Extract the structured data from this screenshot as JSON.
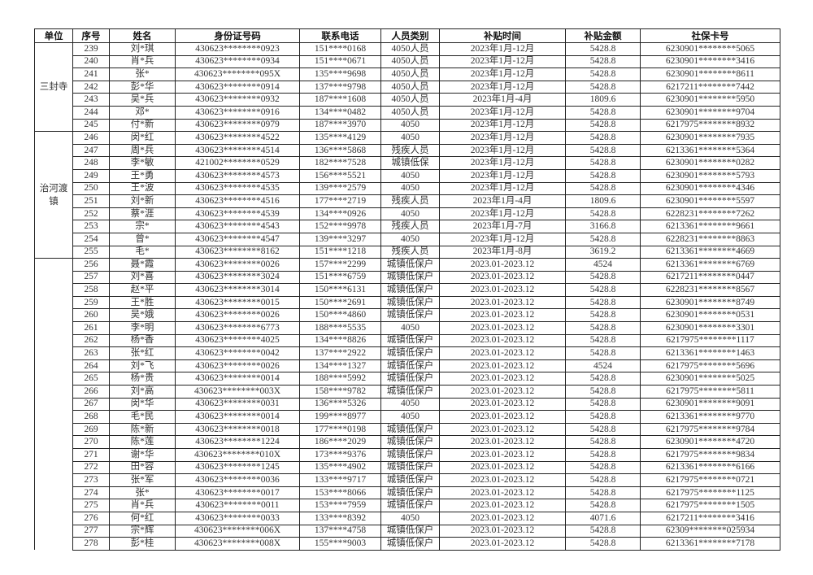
{
  "table": {
    "headers": [
      "单位",
      "序号",
      "姓名",
      "身份证号码",
      "联系电话",
      "人员类别",
      "补贴时间",
      "补贴金额",
      "社保卡号"
    ],
    "unit_groups": [
      {
        "name": "三封寺",
        "row_count": 7
      },
      {
        "name": "治河渡镇",
        "row_count": 10
      },
      {
        "name": "",
        "row_count": 23
      }
    ],
    "rows": [
      [
        "239",
        "刘*琪",
        "430623********0923",
        "151****0168",
        "4050人员",
        "2023年1月-12月",
        "5428.8",
        "6230901********5065"
      ],
      [
        "240",
        "肖*兵",
        "430623********0934",
        "151****0671",
        "4050人员",
        "2023年1月-12月",
        "5428.8",
        "6230901********3416"
      ],
      [
        "241",
        "张*",
        "430623********095X",
        "135****9698",
        "4050人员",
        "2023年1月-12月",
        "5428.8",
        "6230901********8611"
      ],
      [
        "242",
        "彭*华",
        "430623********0914",
        "137****9798",
        "4050人员",
        "2023年1月-12月",
        "5428.8",
        "6217211********7442"
      ],
      [
        "243",
        "吴*兵",
        "430623********0932",
        "187****1608",
        "4050人员",
        "2023年1月-4月",
        "1809.6",
        "6230901********5950"
      ],
      [
        "244",
        "邓*",
        "430623********0916",
        "134****0482",
        "4050人员",
        "2023年1月-12月",
        "5428.8",
        "6230901********9704"
      ],
      [
        "245",
        "付*新",
        "430623********0979",
        "187****3970",
        "4050",
        "2023年1月-12月",
        "5428.8",
        "6217975********8932"
      ],
      [
        "246",
        "闵*红",
        "430623********4522",
        "135****4129",
        "4050",
        "2023年1月-12月",
        "5428.8",
        "6230901********7935"
      ],
      [
        "247",
        "周*兵",
        "430623********4514",
        "136****5868",
        "残疾人员",
        "2023年1月-12月",
        "5428.8",
        "6213361********5364"
      ],
      [
        "248",
        "李*敏",
        "421002********0529",
        "182****7528",
        "城镇低保",
        "2023年1月-12月",
        "5428.8",
        "6230901********0282"
      ],
      [
        "249",
        "王*勇",
        "430623********4573",
        "156****5521",
        "4050",
        "2023年1月-12月",
        "5428.8",
        "6230901********5793"
      ],
      [
        "250",
        "王*波",
        "430623********4535",
        "139****2579",
        "4050",
        "2023年1月-12月",
        "5428.8",
        "6230901********4346"
      ],
      [
        "251",
        "刘*新",
        "430623********4516",
        "177****2719",
        "残疾人员",
        "2023年1月-4月",
        "1809.6",
        "6230901********5597"
      ],
      [
        "252",
        "蔡*涯",
        "430623********4539",
        "134****0926",
        "4050",
        "2023年1月-12月",
        "5428.8",
        "6228231********7262"
      ],
      [
        "253",
        "宗*",
        "430623********4543",
        "152****9978",
        "残疾人员",
        "2023年1月-7月",
        "3166.8",
        "6213361********9661"
      ],
      [
        "254",
        "曾*",
        "430623********4547",
        "139****3297",
        "4050",
        "2023年1月-12月",
        "5428.8",
        "6228231********8863"
      ],
      [
        "255",
        "毛*",
        "430623********8162",
        "151****1218",
        "残疾人员",
        "2023年1月-8月",
        "3619.2",
        "6213361********4669"
      ],
      [
        "256",
        "聂*霞",
        "430623********0026",
        "157****2299",
        "城镇低保户",
        "2023.01-2023.12",
        "4524",
        "6213361********6769"
      ],
      [
        "257",
        "刘*喜",
        "430623********3024",
        "151****6759",
        "城镇低保户",
        "2023.01-2023.12",
        "5428.8",
        "6217211********0447"
      ],
      [
        "258",
        "赵*平",
        "430623********3014",
        "150****6131",
        "城镇低保户",
        "2023.01-2023.12",
        "5428.8",
        "6228231********8567"
      ],
      [
        "259",
        "王*胜",
        "430623********0015",
        "150****2691",
        "城镇低保户",
        "2023.01-2023.12",
        "5428.8",
        "6230901********8749"
      ],
      [
        "260",
        "吴*娥",
        "430623********0026",
        "150****4860",
        "城镇低保户",
        "2023.01-2023.12",
        "5428.8",
        "6230901********0531"
      ],
      [
        "261",
        "李*明",
        "430623********6773",
        "188****5535",
        "4050",
        "2023.01-2023.12",
        "5428.8",
        "6230901********3301"
      ],
      [
        "262",
        "杨*香",
        "430623********4025",
        "134****8826",
        "城镇低保户",
        "2023.01-2023.12",
        "5428.8",
        "6217975********1117"
      ],
      [
        "263",
        "张*红",
        "430623********0042",
        "137****2922",
        "城镇低保户",
        "2023.01-2023.12",
        "5428.8",
        "6213361********1463"
      ],
      [
        "264",
        "刘*飞",
        "430623********0026",
        "134****1327",
        "城镇低保户",
        "2023.01-2023.12",
        "4524",
        "6217975********5696"
      ],
      [
        "265",
        "杨*贵",
        "430623********0014",
        "188****5992",
        "城镇低保户",
        "2023.01-2023.12",
        "5428.8",
        "6230901********5025"
      ],
      [
        "266",
        "刘*高",
        "430623********003X",
        "158****9782",
        "城镇低保户",
        "2023.01-2023.12",
        "5428.8",
        "6217975********5811"
      ],
      [
        "267",
        "闵*华",
        "430623********0031",
        "136****5326",
        "4050",
        "2023.01-2023.12",
        "5428.8",
        "6230901********9091"
      ],
      [
        "268",
        "毛*民",
        "430623********0014",
        "199****8977",
        "4050",
        "2023.01-2023.12",
        "5428.8",
        "6213361********9770"
      ],
      [
        "269",
        "陈*新",
        "430623********0018",
        "177****0198",
        "城镇低保户",
        "2023.01-2023.12",
        "5428.8",
        "6217975********9784"
      ],
      [
        "270",
        "陈*莲",
        "430623********1224",
        "186****2029",
        "城镇低保户",
        "2023.01-2023.12",
        "5428.8",
        "6230901********4720"
      ],
      [
        "271",
        "谢*华",
        "430623********010X",
        "173****9376",
        "城镇低保户",
        "2023.01-2023.12",
        "5428.8",
        "6217975********9834"
      ],
      [
        "272",
        "田*容",
        "430623********1245",
        "135****4902",
        "城镇低保户",
        "2023.01-2023.12",
        "5428.8",
        "6213361********6166"
      ],
      [
        "273",
        "张*军",
        "430623********0036",
        "133****9717",
        "城镇低保户",
        "2023.01-2023.12",
        "5428.8",
        "6217975********0721"
      ],
      [
        "274",
        "张*",
        "430623********0017",
        "153****8066",
        "城镇低保户",
        "2023.01-2023.12",
        "5428.8",
        "6217975********1125"
      ],
      [
        "275",
        "肖*兵",
        "430623********0011",
        "153****7959",
        "城镇低保户",
        "2023.01-2023.12",
        "5428.8",
        "6217975********1505"
      ],
      [
        "276",
        "何*红",
        "430623********0033",
        "133****8392",
        "4050",
        "2023.01-2023.12",
        "4071.6",
        "6217211********3416"
      ],
      [
        "277",
        "宗*辉",
        "430623********006X",
        "137****4758",
        "城镇低保户",
        "2023.01-2023.12",
        "5428.8",
        "62309********025934"
      ],
      [
        "278",
        "彭*桂",
        "430623********008X",
        "155****9003",
        "城镇低保户",
        "2023.01-2023.12",
        "5428.8",
        "6213361********7178"
      ]
    ]
  }
}
